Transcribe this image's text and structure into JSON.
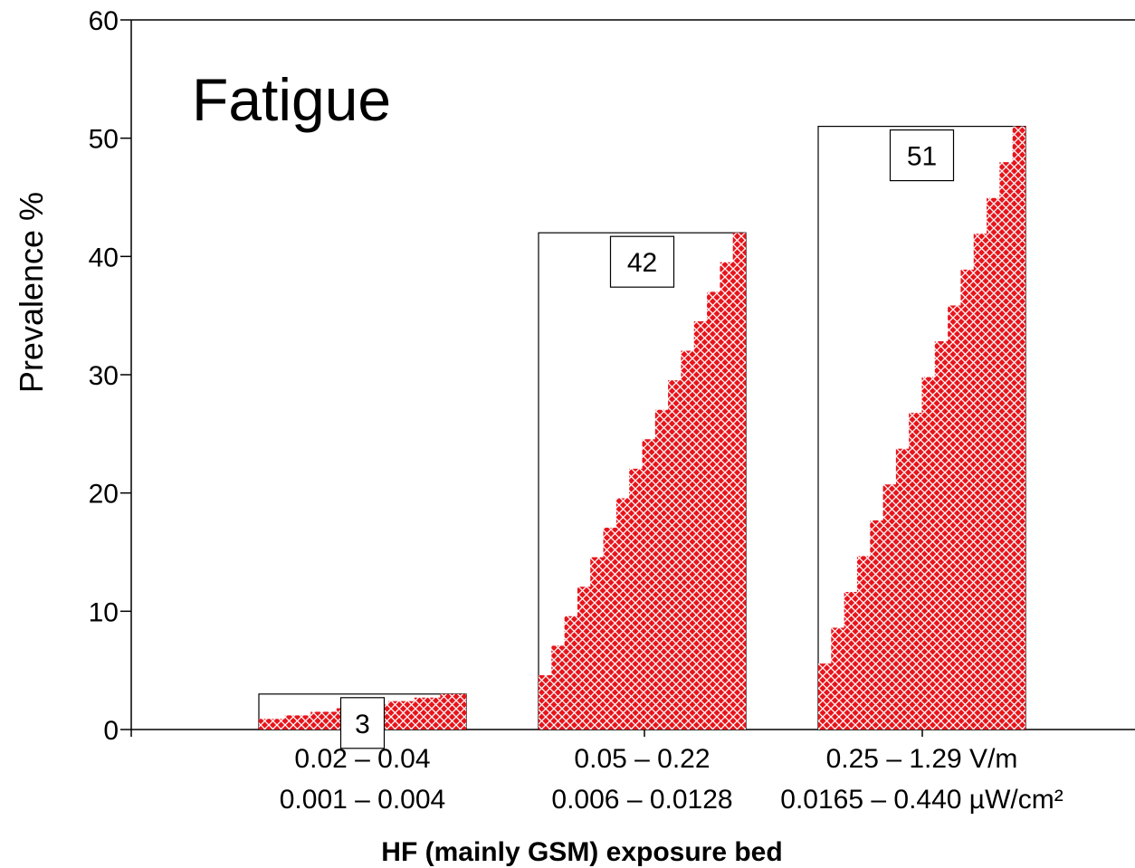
{
  "chart_data": {
    "type": "bar",
    "title": "Fatigue",
    "ylabel": "Prevalence %",
    "xlabel": "HF (mainly GSM) exposure bed",
    "ylim": [
      0,
      60
    ],
    "yticks": [
      0,
      10,
      20,
      30,
      40,
      50,
      60
    ],
    "categories": [
      {
        "line1": "0.02 – 0.04",
        "line2": "0.001 – 0.004"
      },
      {
        "line1": "0.05 – 0.22",
        "line2": "0.006 – 0.0128"
      },
      {
        "line1": "0.25 – 1.29 V/m",
        "line2": "0.0165 – 0.440 µW/cm²"
      }
    ],
    "values": [
      3,
      42,
      51
    ],
    "value_labels": [
      "3",
      "42",
      "51"
    ],
    "colors": {
      "fill": "#e8141b",
      "hatch": "#ffffff",
      "outline": "#000000"
    },
    "grid": false,
    "legend": "none"
  }
}
